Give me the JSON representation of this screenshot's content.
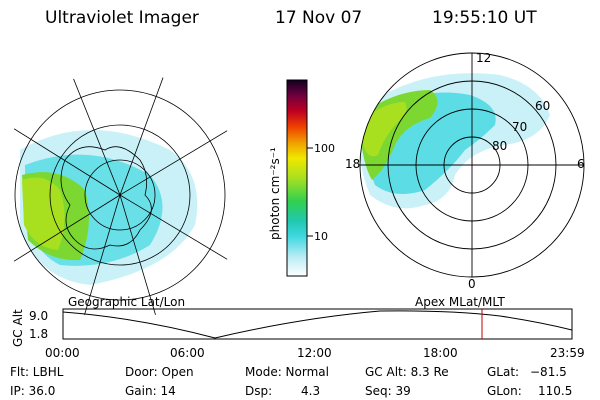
{
  "header": {
    "title": "Ultraviolet Imager",
    "date": "17 Nov 07",
    "time": "19:55:10 UT"
  },
  "colorbar": {
    "unit_label": "photon cm⁻²s⁻¹",
    "ticks": [
      "100",
      "10"
    ]
  },
  "polar_plot": {
    "lat_labels": [
      "60",
      "70",
      "80"
    ],
    "mlt_labels": [
      "12",
      "18",
      "6",
      "0"
    ]
  },
  "labels": {
    "left_map": "Geographic Lat/Lon",
    "right_map": "Apex MLat/MLT"
  },
  "orbit_plot": {
    "ylabel": "GC Alt",
    "y_ticks": [
      "9.0",
      "1.8"
    ],
    "x_ticks": [
      "00:00",
      "06:00",
      "12:00",
      "18:00",
      "23:59"
    ]
  },
  "info": {
    "flt": "Flt: LBHL",
    "ip": "IP: 36.0",
    "door": "Door: Open",
    "gain": "Gain: 14",
    "mode": "Mode:  Normal",
    "dsp_label": "Dsp:",
    "dsp_value": "4.3",
    "gc_alt": "GC Alt: 8.3 Re",
    "seq": "Seq: 39",
    "glat_label": "GLat:",
    "glat_value": "−81.5",
    "glon_label": "GLon:",
    "glon_value": "110.5"
  }
}
